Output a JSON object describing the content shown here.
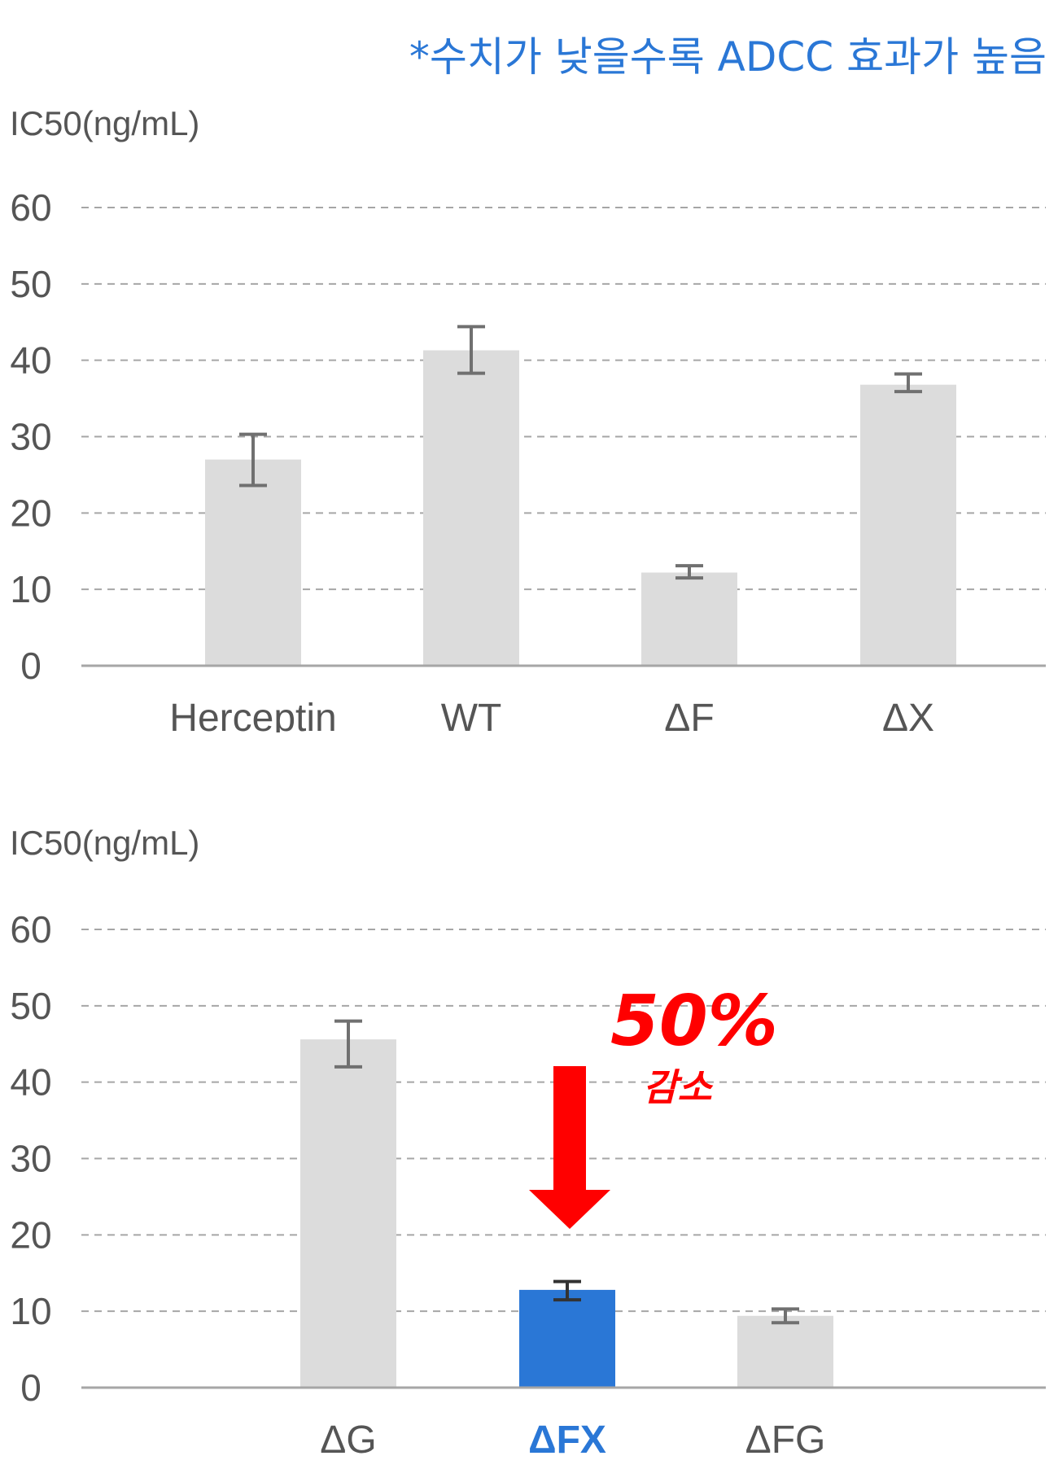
{
  "note": "*수치가 낮을수록 ADCC 효과가 높음",
  "callout": {
    "percent": "50%",
    "word": "감소",
    "color": "#ff0000"
  },
  "colors": {
    "bar": "#dcdcdc",
    "highlight": "#2a77d6",
    "error": "#707070",
    "error_highlight": "#333333",
    "grid": "#a6a6a6",
    "axis": "#a6a6a6"
  },
  "chart_data": [
    {
      "type": "bar",
      "ylabel": "IC50(ng/mL)",
      "ylim": [
        0,
        60
      ],
      "yticks": [
        0,
        10,
        20,
        30,
        40,
        50,
        60
      ],
      "grid": true,
      "categories": [
        "Herceptin",
        "WT",
        "ΔF",
        "ΔX"
      ],
      "values": [
        27,
        41.3,
        12.2,
        36.8
      ],
      "error_low": [
        23.6,
        38.3,
        11.5,
        35.9
      ],
      "error_high": [
        30.3,
        44.4,
        13.1,
        38.2
      ],
      "highlight": []
    },
    {
      "type": "bar",
      "ylabel": "IC50(ng/mL)",
      "ylim": [
        0,
        60
      ],
      "yticks": [
        0,
        10,
        20,
        30,
        40,
        50,
        60
      ],
      "grid": true,
      "categories": [
        "ΔG",
        "ΔFX",
        "ΔFG"
      ],
      "values": [
        45.6,
        12.8,
        9.4
      ],
      "error_low": [
        42.0,
        11.5,
        8.5
      ],
      "error_high": [
        48.0,
        13.9,
        10.3
      ],
      "highlight": [
        1
      ]
    }
  ]
}
